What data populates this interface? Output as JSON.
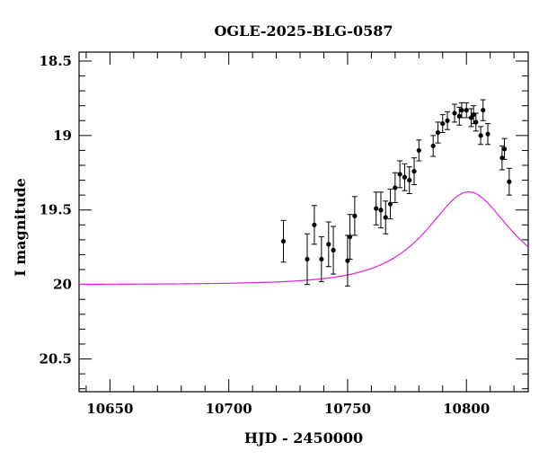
{
  "chart_data": {
    "type": "scatter",
    "title": "OGLE-2025-BLG-0587",
    "xlabel": "HJD - 2450000",
    "ylabel": "I magnitude",
    "xlim": [
      10637,
      10826
    ],
    "ylim": [
      20.72,
      18.44
    ],
    "y_inverted": true,
    "grid": false,
    "x_ticks": [
      10650,
      10700,
      10750,
      10800
    ],
    "x_tick_labels": [
      "10650",
      "10700",
      "10750",
      "10800"
    ],
    "y_ticks": [
      18.5,
      19,
      19.5,
      20,
      20.5
    ],
    "y_tick_labels": [
      "18.5",
      "19",
      "19.5",
      "20",
      "20.5"
    ],
    "series": [
      {
        "kind": "points_with_errorbars",
        "color": "#000000",
        "points": [
          {
            "x": 10723,
            "y": 19.71,
            "err": 0.14
          },
          {
            "x": 10733,
            "y": 19.83,
            "err": 0.17
          },
          {
            "x": 10736,
            "y": 19.6,
            "err": 0.13
          },
          {
            "x": 10739,
            "y": 19.83,
            "err": 0.15
          },
          {
            "x": 10742,
            "y": 19.73,
            "err": 0.15
          },
          {
            "x": 10744,
            "y": 19.77,
            "err": 0.16
          },
          {
            "x": 10750,
            "y": 19.84,
            "err": 0.17
          },
          {
            "x": 10751,
            "y": 19.68,
            "err": 0.15
          },
          {
            "x": 10753,
            "y": 19.54,
            "err": 0.13
          },
          {
            "x": 10762,
            "y": 19.49,
            "err": 0.11
          },
          {
            "x": 10764,
            "y": 19.5,
            "err": 0.12
          },
          {
            "x": 10766,
            "y": 19.55,
            "err": 0.11
          },
          {
            "x": 10768,
            "y": 19.46,
            "err": 0.1
          },
          {
            "x": 10770,
            "y": 19.35,
            "err": 0.1
          },
          {
            "x": 10772,
            "y": 19.26,
            "err": 0.09
          },
          {
            "x": 10774,
            "y": 19.28,
            "err": 0.09
          },
          {
            "x": 10776,
            "y": 19.3,
            "err": 0.09
          },
          {
            "x": 10778,
            "y": 19.24,
            "err": 0.09
          },
          {
            "x": 10780,
            "y": 19.1,
            "err": 0.07
          },
          {
            "x": 10786,
            "y": 19.07,
            "err": 0.07
          },
          {
            "x": 10788,
            "y": 18.98,
            "err": 0.07
          },
          {
            "x": 10790,
            "y": 18.92,
            "err": 0.06
          },
          {
            "x": 10792,
            "y": 18.9,
            "err": 0.06
          },
          {
            "x": 10795,
            "y": 18.85,
            "err": 0.06
          },
          {
            "x": 10797,
            "y": 18.87,
            "err": 0.06
          },
          {
            "x": 10798,
            "y": 18.83,
            "err": 0.05
          },
          {
            "x": 10800,
            "y": 18.83,
            "err": 0.05
          },
          {
            "x": 10802,
            "y": 18.88,
            "err": 0.06
          },
          {
            "x": 10803,
            "y": 18.86,
            "err": 0.06
          },
          {
            "x": 10804,
            "y": 18.91,
            "err": 0.06
          },
          {
            "x": 10806,
            "y": 19.0,
            "err": 0.06
          },
          {
            "x": 10807,
            "y": 18.83,
            "err": 0.07
          },
          {
            "x": 10809,
            "y": 18.99,
            "err": 0.07
          },
          {
            "x": 10815,
            "y": 19.15,
            "err": 0.08
          },
          {
            "x": 10816,
            "y": 19.09,
            "err": 0.07
          },
          {
            "x": 10818,
            "y": 19.31,
            "err": 0.09
          }
        ]
      },
      {
        "kind": "model_curve",
        "color": "#e020e0",
        "model": "point-lens",
        "params": {
          "t0": 10801,
          "tE": 27,
          "u0": 0.65,
          "baseline": 20.0
        }
      }
    ]
  }
}
